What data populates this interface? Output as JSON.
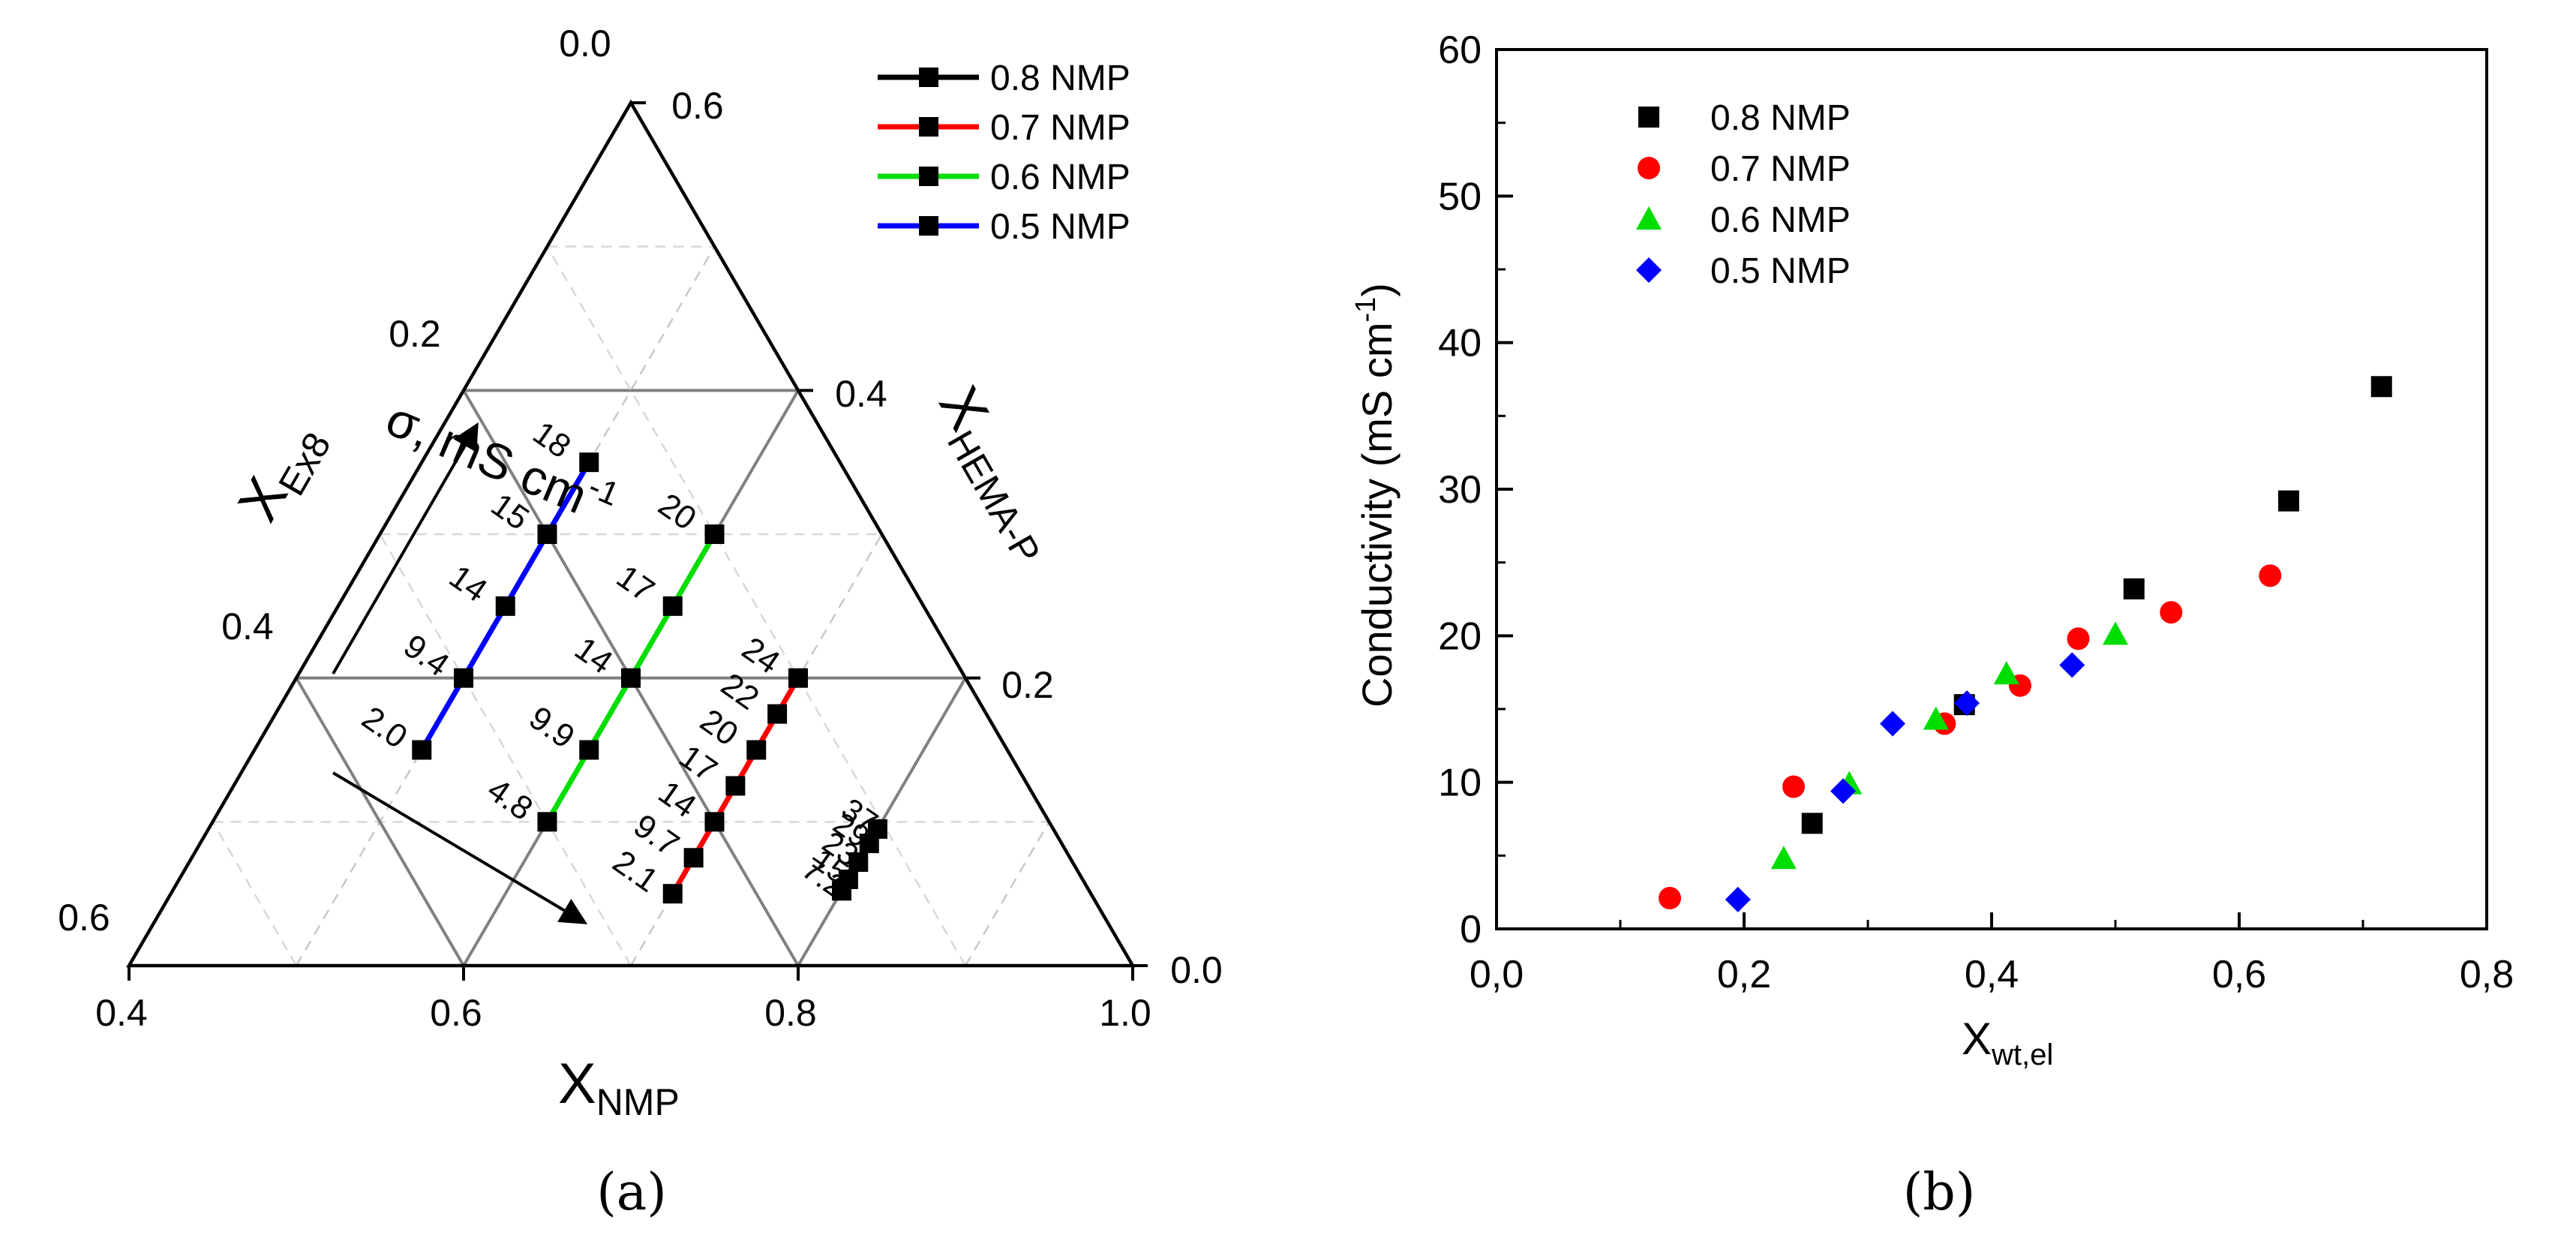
{
  "figure": {
    "panel_a_label": "(a)",
    "panel_b_label": "(b)"
  },
  "chart_data": [
    {
      "type": "line",
      "subtype": "ternary",
      "panel": "a",
      "axes": {
        "nmp": {
          "label": "X",
          "label_sub": "NMP",
          "range": [
            0.4,
            1.0
          ],
          "ticks": [
            {
              "v": 0.4,
              "label": "0.4"
            },
            {
              "v": 0.6,
              "label": "0.6"
            },
            {
              "v": 0.8,
              "label": "0.8"
            },
            {
              "v": 1.0,
              "label": "1.0"
            }
          ]
        },
        "ex8": {
          "label": "X",
          "label_sub": "Ex8",
          "range": [
            0,
            0.6
          ],
          "ticks": [
            {
              "v": 0.0,
              "label": "0.0"
            },
            {
              "v": 0.2,
              "label": "0.2"
            },
            {
              "v": 0.4,
              "label": "0.4"
            },
            {
              "v": 0.6,
              "label": "0.6"
            }
          ]
        },
        "hema": {
          "label": "X",
          "label_sub": "HEMA-P",
          "range": [
            0,
            0.6
          ],
          "ticks": [
            {
              "v": 0.0,
              "label": "0.0"
            },
            {
              "v": 0.2,
              "label": "0.2"
            },
            {
              "v": 0.4,
              "label": "0.4"
            },
            {
              "v": 0.6,
              "label": "0.6"
            }
          ]
        }
      },
      "annotation": {
        "main": "σ, mS cm",
        "superscript": "-1"
      },
      "grid": true,
      "legend_position": "top-right",
      "series": [
        {
          "name": "0.8 NMP",
          "color": "#000000",
          "nmp": 0.8,
          "points": [
            {
              "hema": 0.052,
              "label": "7.2"
            },
            {
              "hema": 0.06,
              "label": "15"
            },
            {
              "hema": 0.072,
              "label": "23"
            },
            {
              "hema": 0.085,
              "label": "29"
            },
            {
              "hema": 0.095,
              "label": "37"
            }
          ]
        },
        {
          "name": "0.7 NMP",
          "color": "#ff0000",
          "nmp": 0.7,
          "points": [
            {
              "hema": 0.05,
              "label": "2.1"
            },
            {
              "hema": 0.075,
              "label": "9.7"
            },
            {
              "hema": 0.1,
              "label": "14"
            },
            {
              "hema": 0.125,
              "label": "17"
            },
            {
              "hema": 0.15,
              "label": "20"
            },
            {
              "hema": 0.175,
              "label": "22"
            },
            {
              "hema": 0.2,
              "label": "24"
            }
          ]
        },
        {
          "name": "0.6 NMP",
          "color": "#00dd00",
          "nmp": 0.6,
          "points": [
            {
              "hema": 0.1,
              "label": "4.8"
            },
            {
              "hema": 0.15,
              "label": "9.9"
            },
            {
              "hema": 0.2,
              "label": "14"
            },
            {
              "hema": 0.25,
              "label": "17"
            },
            {
              "hema": 0.3,
              "label": "20"
            }
          ]
        },
        {
          "name": "0.5 NMP",
          "color": "#0000ff",
          "nmp": 0.5,
          "points": [
            {
              "hema": 0.15,
              "label": "2.0"
            },
            {
              "hema": 0.2,
              "label": "9.4"
            },
            {
              "hema": 0.25,
              "label": "14"
            },
            {
              "hema": 0.3,
              "label": "15"
            },
            {
              "hema": 0.35,
              "label": "18"
            }
          ]
        }
      ]
    },
    {
      "type": "scatter",
      "panel": "b",
      "xlabel": "X",
      "xlabel_sub": "wt,el",
      "ylabel": "Conductivity (mS cm",
      "ylabel_sup": "-1",
      "ylabel_end": ")",
      "xlim": [
        0.0,
        0.8
      ],
      "ylim": [
        0,
        60
      ],
      "x_ticks": [
        {
          "v": 0.0,
          "label": "0,0"
        },
        {
          "v": 0.2,
          "label": "0,2"
        },
        {
          "v": 0.4,
          "label": "0,4"
        },
        {
          "v": 0.6,
          "label": "0,6"
        },
        {
          "v": 0.8,
          "label": "0,8"
        }
      ],
      "y_ticks": [
        {
          "v": 0,
          "label": "0"
        },
        {
          "v": 10,
          "label": "10"
        },
        {
          "v": 20,
          "label": "20"
        },
        {
          "v": 30,
          "label": "30"
        },
        {
          "v": 40,
          "label": "40"
        },
        {
          "v": 50,
          "label": "50"
        },
        {
          "v": 60,
          "label": "60"
        }
      ],
      "grid": false,
      "legend_position": "top-left",
      "series": [
        {
          "name": "0.8 NMP",
          "marker": "square",
          "color": "#000000",
          "points": [
            [
              0.255,
              7.2
            ],
            [
              0.378,
              15.3
            ],
            [
              0.515,
              23.2
            ],
            [
              0.64,
              29.2
            ],
            [
              0.715,
              37.0
            ]
          ]
        },
        {
          "name": "0.7 NMP",
          "marker": "circle",
          "color": "#ff0000",
          "points": [
            [
              0.14,
              2.1
            ],
            [
              0.24,
              9.7
            ],
            [
              0.362,
              14.0
            ],
            [
              0.423,
              16.6
            ],
            [
              0.47,
              19.8
            ],
            [
              0.545,
              21.6
            ],
            [
              0.625,
              24.1
            ]
          ]
        },
        {
          "name": "0.6 NMP",
          "marker": "triangle",
          "color": "#00dd00",
          "points": [
            [
              0.232,
              4.8
            ],
            [
              0.285,
              9.9
            ],
            [
              0.355,
              14.3
            ],
            [
              0.412,
              17.4
            ],
            [
              0.5,
              20.1
            ]
          ]
        },
        {
          "name": "0.5 NMP",
          "marker": "diamond",
          "color": "#0000ff",
          "points": [
            [
              0.195,
              2.0
            ],
            [
              0.28,
              9.4
            ],
            [
              0.32,
              14.0
            ],
            [
              0.38,
              15.4
            ],
            [
              0.465,
              18.0
            ]
          ]
        }
      ]
    }
  ]
}
